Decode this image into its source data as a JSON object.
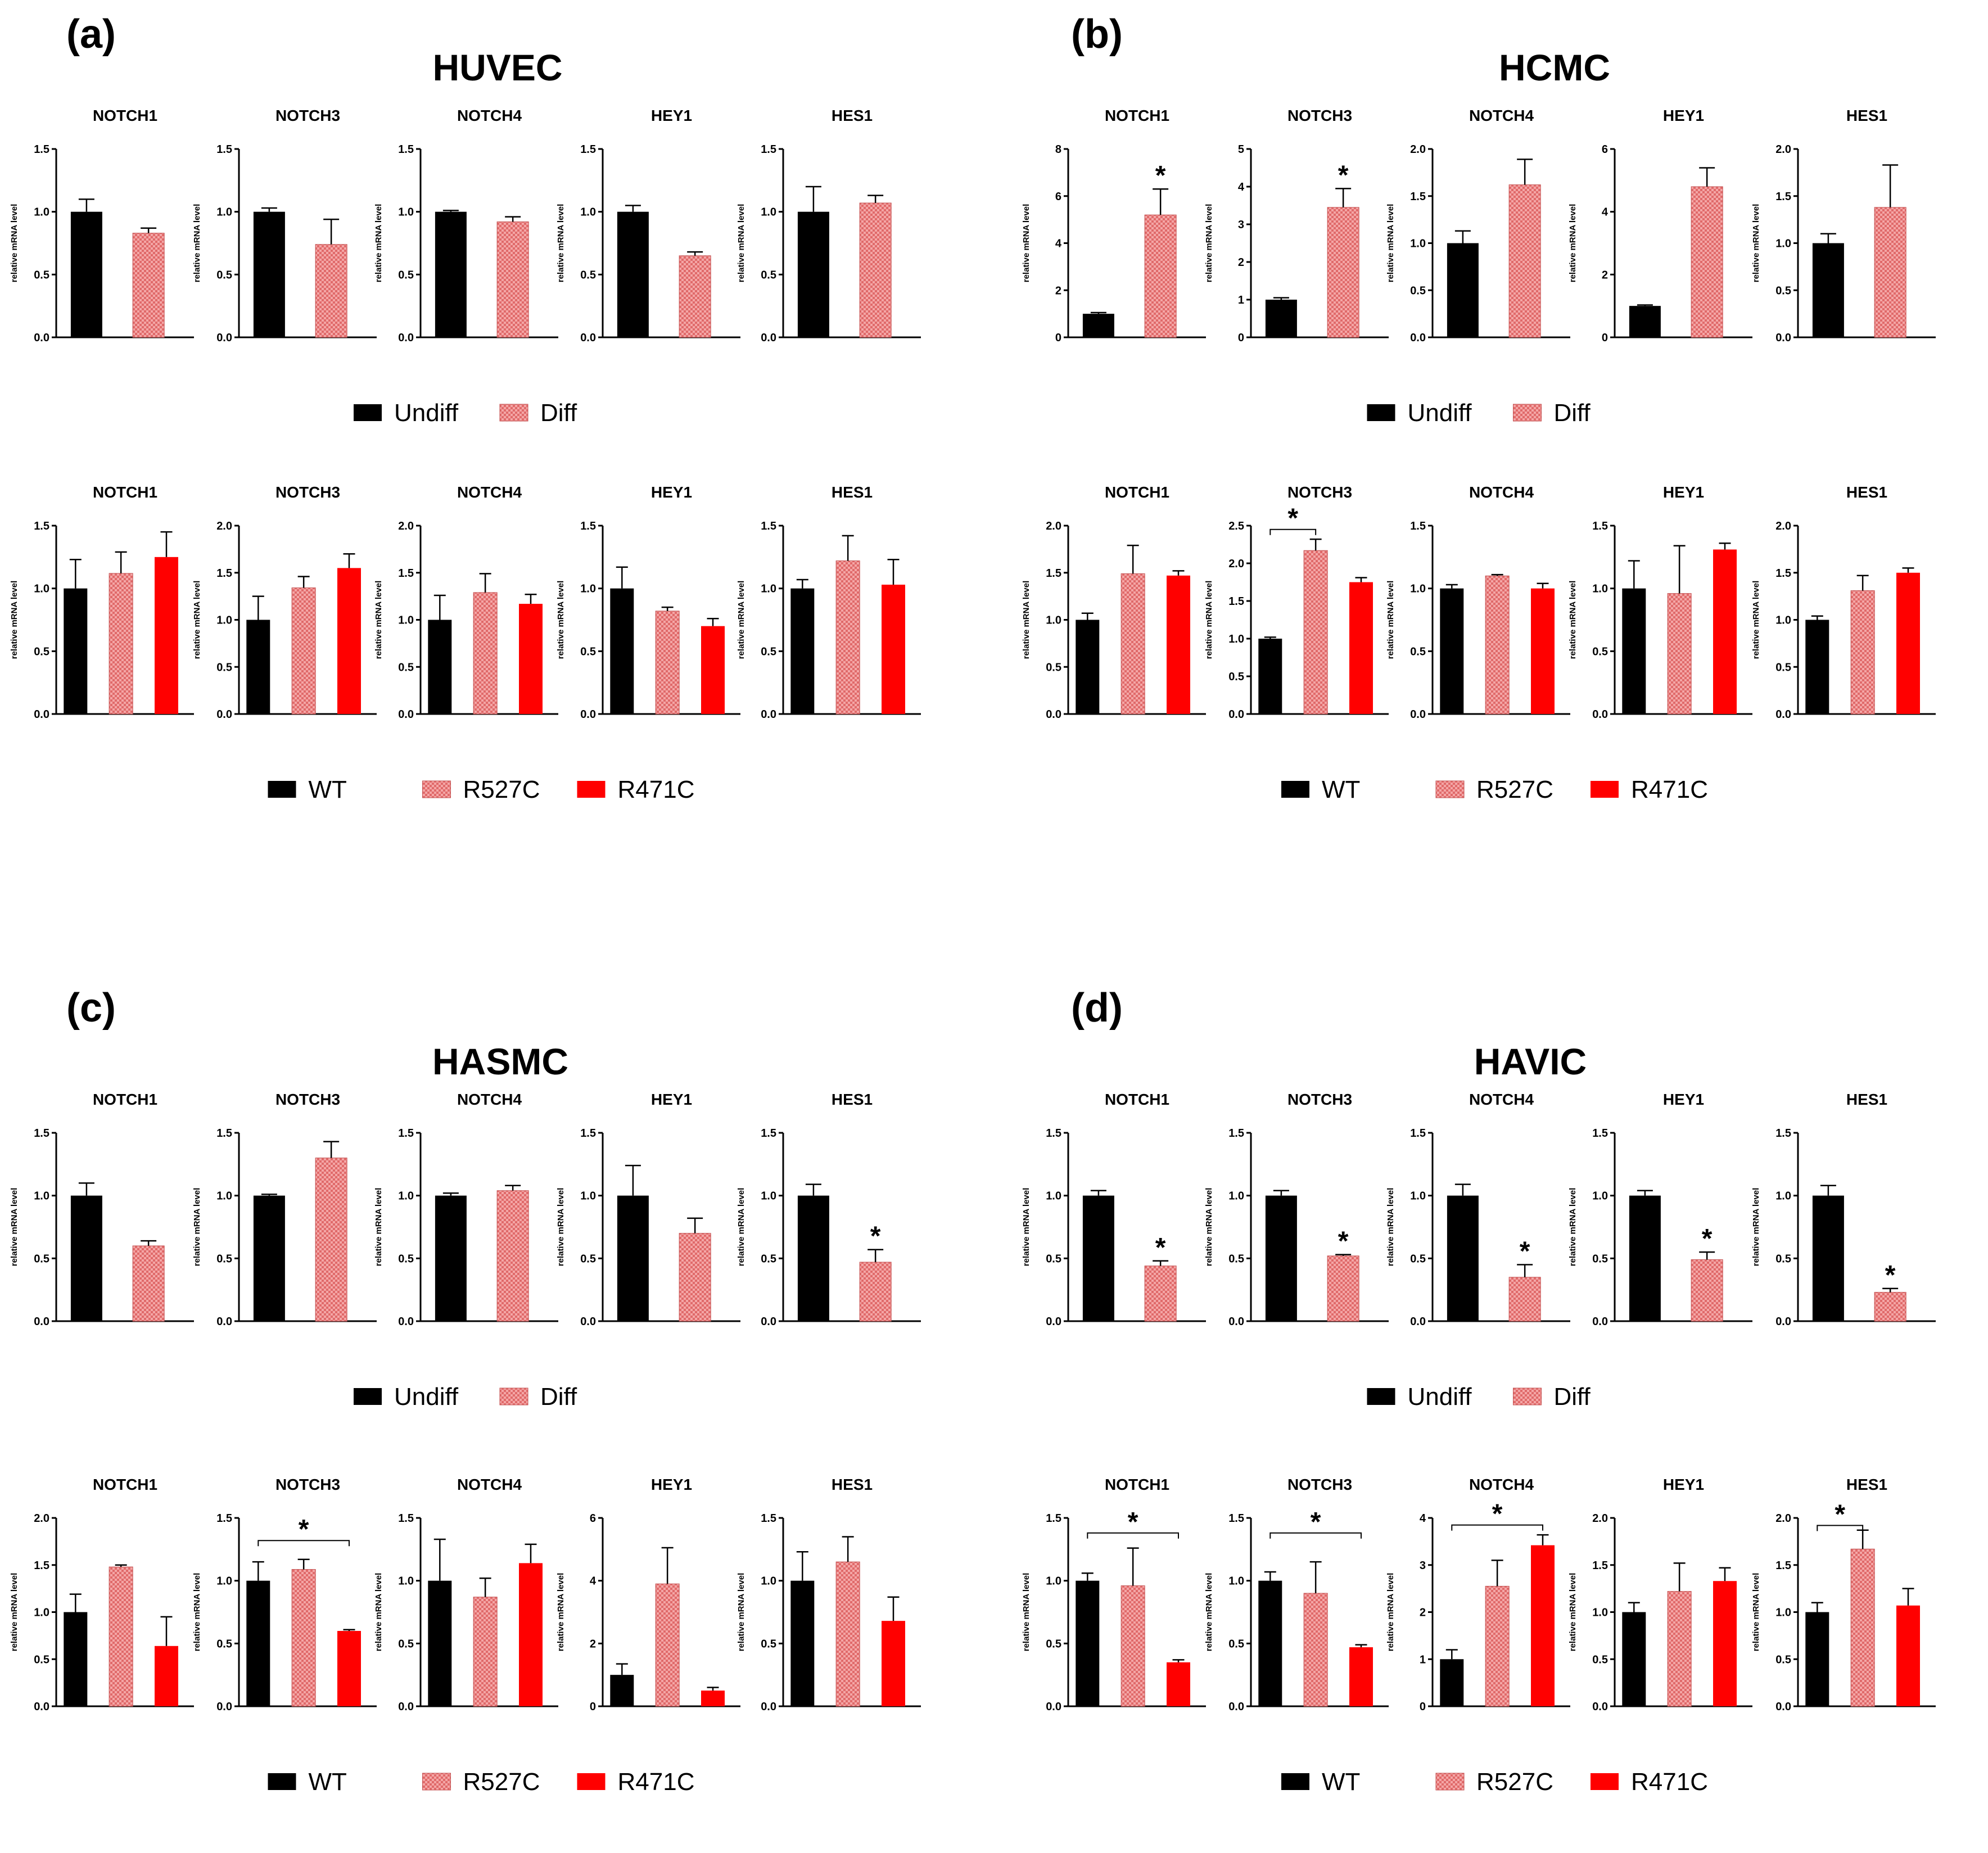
{
  "colors": {
    "black": "#000000",
    "pink": "#f08c8c",
    "red": "#ff0000"
  },
  "legends": {
    "diff": [
      {
        "label": "Undiff",
        "fill": "black"
      },
      {
        "label": "Diff",
        "fill": "pink"
      }
    ],
    "geno": [
      {
        "label": "WT",
        "fill": "black"
      },
      {
        "label": "R527C",
        "fill": "pink"
      },
      {
        "label": "R471C",
        "fill": "red"
      }
    ]
  },
  "panels": [
    {
      "label": "(a)",
      "title": "HUVEC"
    },
    {
      "label": "(b)",
      "title": "HCMC"
    },
    {
      "label": "(c)",
      "title": "HASMC"
    },
    {
      "label": "(d)",
      "title": "HAVIC"
    }
  ],
  "chart_data": [
    {
      "panel": 0,
      "row": "diff",
      "type": "bar",
      "ylabel": "relative mRNA level",
      "charts": [
        {
          "title": "NOTCH1",
          "ymax": 1.5,
          "ticks": [
            "0.0",
            "0.5",
            "1.0",
            "1.5"
          ],
          "values": [
            1.0,
            0.83
          ],
          "errors": [
            0.1,
            0.04
          ]
        },
        {
          "title": "NOTCH3",
          "ymax": 1.5,
          "ticks": [
            "0.0",
            "0.5",
            "1.0",
            "1.5"
          ],
          "values": [
            1.0,
            0.74
          ],
          "errors": [
            0.03,
            0.2
          ]
        },
        {
          "title": "NOTCH4",
          "ymax": 1.5,
          "ticks": [
            "0.0",
            "0.5",
            "1.0",
            "1.5"
          ],
          "values": [
            1.0,
            0.92
          ],
          "errors": [
            0.01,
            0.04
          ]
        },
        {
          "title": "HEY1",
          "ymax": 1.5,
          "ticks": [
            "0.0",
            "0.5",
            "1.0",
            "1.5"
          ],
          "values": [
            1.0,
            0.65
          ],
          "errors": [
            0.05,
            0.03
          ]
        },
        {
          "title": "HES1",
          "ymax": 1.5,
          "ticks": [
            "0.0",
            "0.5",
            "1.0",
            "1.5"
          ],
          "values": [
            1.0,
            1.07
          ],
          "errors": [
            0.2,
            0.06
          ]
        }
      ]
    },
    {
      "panel": 0,
      "row": "geno",
      "type": "bar",
      "ylabel": "relative mRNA level",
      "charts": [
        {
          "title": "NOTCH1",
          "ymax": 1.5,
          "ticks": [
            "0.0",
            "0.5",
            "1.0",
            "1.5"
          ],
          "values": [
            1.0,
            1.12,
            1.25
          ],
          "errors": [
            0.23,
            0.17,
            0.2
          ]
        },
        {
          "title": "NOTCH3",
          "ymax": 2.0,
          "ticks": [
            "0.0",
            "0.5",
            "1.0",
            "1.5",
            "2.0"
          ],
          "values": [
            1.0,
            1.34,
            1.55
          ],
          "errors": [
            0.25,
            0.12,
            0.15
          ]
        },
        {
          "title": "NOTCH4",
          "ymax": 2.0,
          "ticks": [
            "0.0",
            "0.5",
            "1.0",
            "1.5",
            "2.0"
          ],
          "values": [
            1.0,
            1.29,
            1.17
          ],
          "errors": [
            0.26,
            0.2,
            0.1
          ]
        },
        {
          "title": "HEY1",
          "ymax": 1.5,
          "ticks": [
            "0.0",
            "0.5",
            "1.0",
            "1.5"
          ],
          "values": [
            1.0,
            0.82,
            0.7
          ],
          "errors": [
            0.17,
            0.03,
            0.06
          ]
        },
        {
          "title": "HES1",
          "ymax": 1.5,
          "ticks": [
            "0.0",
            "0.5",
            "1.0",
            "1.5"
          ],
          "values": [
            1.0,
            1.22,
            1.03
          ],
          "errors": [
            0.07,
            0.2,
            0.2
          ]
        }
      ]
    },
    {
      "panel": 1,
      "row": "diff",
      "type": "bar",
      "ylabel": "relative mRNA level",
      "charts": [
        {
          "title": "NOTCH1",
          "ymax": 8,
          "ticks": [
            "0",
            "2",
            "4",
            "6",
            "8"
          ],
          "values": [
            1.0,
            5.2
          ],
          "errors": [
            0.05,
            1.1
          ],
          "stars": [
            {
              "label": "*",
              "bar": 1
            }
          ]
        },
        {
          "title": "NOTCH3",
          "ymax": 5,
          "ticks": [
            "0",
            "1",
            "2",
            "3",
            "4",
            "5"
          ],
          "values": [
            1.0,
            3.45
          ],
          "errors": [
            0.05,
            0.5
          ],
          "stars": [
            {
              "label": "*",
              "bar": 1
            }
          ]
        },
        {
          "title": "NOTCH4",
          "ymax": 2.0,
          "ticks": [
            "0.0",
            "0.5",
            "1.0",
            "1.5",
            "2.0"
          ],
          "values": [
            1.0,
            1.62
          ],
          "errors": [
            0.13,
            0.27
          ]
        },
        {
          "title": "HEY1",
          "ymax": 6,
          "ticks": [
            "0",
            "2",
            "4",
            "6"
          ],
          "values": [
            1.0,
            4.8
          ],
          "errors": [
            0.03,
            0.6
          ]
        },
        {
          "title": "HES1",
          "ymax": 2.0,
          "ticks": [
            "0.0",
            "0.5",
            "1.0",
            "1.5",
            "2.0"
          ],
          "values": [
            1.0,
            1.38
          ],
          "errors": [
            0.1,
            0.45
          ]
        }
      ]
    },
    {
      "panel": 1,
      "row": "geno",
      "type": "bar",
      "ylabel": "relative mRNA level",
      "charts": [
        {
          "title": "NOTCH1",
          "ymax": 2.0,
          "ticks": [
            "0.0",
            "0.5",
            "1.0",
            "1.5",
            "2.0"
          ],
          "values": [
            1.0,
            1.49,
            1.47
          ],
          "errors": [
            0.07,
            0.3,
            0.05
          ]
        },
        {
          "title": "NOTCH3",
          "ymax": 2.5,
          "ticks": [
            "0.0",
            "0.5",
            "1.0",
            "1.5",
            "2.0",
            "2.5"
          ],
          "values": [
            1.0,
            2.17,
            1.75
          ],
          "errors": [
            0.02,
            0.15,
            0.06
          ],
          "stars": [
            {
              "label": "*",
              "from": 0,
              "to": 1,
              "y": 2.45
            }
          ]
        },
        {
          "title": "NOTCH4",
          "ymax": 1.5,
          "ticks": [
            "0.0",
            "0.5",
            "1.0",
            "1.5"
          ],
          "values": [
            1.0,
            1.1,
            1.0
          ],
          "errors": [
            0.03,
            0.01,
            0.04
          ]
        },
        {
          "title": "HEY1",
          "ymax": 1.5,
          "ticks": [
            "0.0",
            "0.5",
            "1.0",
            "1.5"
          ],
          "values": [
            1.0,
            0.96,
            1.31
          ],
          "errors": [
            0.22,
            0.38,
            0.05
          ]
        },
        {
          "title": "HES1",
          "ymax": 2.0,
          "ticks": [
            "0.0",
            "0.5",
            "1.0",
            "1.5",
            "2.0"
          ],
          "values": [
            1.0,
            1.31,
            1.5
          ],
          "errors": [
            0.04,
            0.16,
            0.05
          ]
        }
      ]
    },
    {
      "panel": 2,
      "row": "diff",
      "type": "bar",
      "ylabel": "relative mRNA level",
      "charts": [
        {
          "title": "NOTCH1",
          "ymax": 1.5,
          "ticks": [
            "0.0",
            "0.5",
            "1.0",
            "1.5"
          ],
          "values": [
            1.0,
            0.6
          ],
          "errors": [
            0.1,
            0.04
          ]
        },
        {
          "title": "NOTCH3",
          "ymax": 1.5,
          "ticks": [
            "0.0",
            "0.5",
            "1.0",
            "1.5"
          ],
          "values": [
            1.0,
            1.3
          ],
          "errors": [
            0.01,
            0.13
          ]
        },
        {
          "title": "NOTCH4",
          "ymax": 1.5,
          "ticks": [
            "0.0",
            "0.5",
            "1.0",
            "1.5"
          ],
          "values": [
            1.0,
            1.04
          ],
          "errors": [
            0.02,
            0.04
          ]
        },
        {
          "title": "HEY1",
          "ymax": 1.5,
          "ticks": [
            "0.0",
            "0.5",
            "1.0",
            "1.5"
          ],
          "values": [
            1.0,
            0.7
          ],
          "errors": [
            0.24,
            0.12
          ]
        },
        {
          "title": "HES1",
          "ymax": 1.5,
          "ticks": [
            "0.0",
            "0.5",
            "1.0",
            "1.5"
          ],
          "values": [
            1.0,
            0.47
          ],
          "errors": [
            0.09,
            0.1
          ],
          "stars": [
            {
              "label": "*",
              "bar": 1
            }
          ]
        }
      ]
    },
    {
      "panel": 2,
      "row": "geno",
      "type": "bar",
      "ylabel": "relative mRNA level",
      "charts": [
        {
          "title": "NOTCH1",
          "ymax": 2.0,
          "ticks": [
            "0.0",
            "0.5",
            "1.0",
            "1.5",
            "2.0"
          ],
          "values": [
            1.0,
            1.48,
            0.64
          ],
          "errors": [
            0.19,
            0.02,
            0.31
          ]
        },
        {
          "title": "NOTCH3",
          "ymax": 1.5,
          "ticks": [
            "0.0",
            "0.5",
            "1.0",
            "1.5"
          ],
          "values": [
            1.0,
            1.09,
            0.6
          ],
          "errors": [
            0.15,
            0.08,
            0.01
          ],
          "stars": [
            {
              "label": "*",
              "from": 0,
              "to": 2,
              "y": 1.32
            }
          ]
        },
        {
          "title": "NOTCH4",
          "ymax": 1.5,
          "ticks": [
            "0.0",
            "0.5",
            "1.0",
            "1.5"
          ],
          "values": [
            1.0,
            0.87,
            1.14
          ],
          "errors": [
            0.33,
            0.15,
            0.15
          ]
        },
        {
          "title": "HEY1",
          "ymax": 6,
          "ticks": [
            "0",
            "2",
            "4",
            "6"
          ],
          "values": [
            1.0,
            3.9,
            0.5
          ],
          "errors": [
            0.35,
            1.15,
            0.1
          ]
        },
        {
          "title": "HES1",
          "ymax": 1.5,
          "ticks": [
            "0.0",
            "0.5",
            "1.0",
            "1.5"
          ],
          "values": [
            1.0,
            1.15,
            0.68
          ],
          "errors": [
            0.23,
            0.2,
            0.19
          ]
        }
      ]
    },
    {
      "panel": 3,
      "row": "diff",
      "type": "bar",
      "ylabel": "relative mRNA level",
      "charts": [
        {
          "title": "NOTCH1",
          "ymax": 1.5,
          "ticks": [
            "0.0",
            "0.5",
            "1.0",
            "1.5"
          ],
          "values": [
            1.0,
            0.44
          ],
          "errors": [
            0.04,
            0.04
          ],
          "stars": [
            {
              "label": "*",
              "bar": 1
            }
          ]
        },
        {
          "title": "NOTCH3",
          "ymax": 1.5,
          "ticks": [
            "0.0",
            "0.5",
            "1.0",
            "1.5"
          ],
          "values": [
            1.0,
            0.52
          ],
          "errors": [
            0.04,
            0.01
          ],
          "stars": [
            {
              "label": "*",
              "bar": 1
            }
          ]
        },
        {
          "title": "NOTCH4",
          "ymax": 1.5,
          "ticks": [
            "0.0",
            "0.5",
            "1.0",
            "1.5"
          ],
          "values": [
            1.0,
            0.35
          ],
          "errors": [
            0.09,
            0.1
          ],
          "stars": [
            {
              "label": "*",
              "bar": 1
            }
          ]
        },
        {
          "title": "HEY1",
          "ymax": 1.5,
          "ticks": [
            "0.0",
            "0.5",
            "1.0",
            "1.5"
          ],
          "values": [
            1.0,
            0.49
          ],
          "errors": [
            0.04,
            0.06
          ],
          "stars": [
            {
              "label": "*",
              "bar": 1
            }
          ]
        },
        {
          "title": "HES1",
          "ymax": 1.5,
          "ticks": [
            "0.0",
            "0.5",
            "1.0",
            "1.5"
          ],
          "values": [
            1.0,
            0.23
          ],
          "errors": [
            0.08,
            0.03
          ],
          "stars": [
            {
              "label": "*",
              "bar": 1
            }
          ]
        }
      ]
    },
    {
      "panel": 3,
      "row": "geno",
      "type": "bar",
      "ylabel": "relative mRNA level",
      "charts": [
        {
          "title": "NOTCH1",
          "ymax": 1.5,
          "ticks": [
            "0.0",
            "0.5",
            "1.0",
            "1.5"
          ],
          "values": [
            1.0,
            0.96,
            0.35
          ],
          "errors": [
            0.06,
            0.3,
            0.02
          ],
          "stars": [
            {
              "label": "*",
              "from": 0,
              "to": 2,
              "y": 1.38
            }
          ]
        },
        {
          "title": "NOTCH3",
          "ymax": 1.5,
          "ticks": [
            "0.0",
            "0.5",
            "1.0",
            "1.5"
          ],
          "values": [
            1.0,
            0.9,
            0.47
          ],
          "errors": [
            0.07,
            0.25,
            0.02
          ],
          "stars": [
            {
              "label": "*",
              "from": 0,
              "to": 2,
              "y": 1.38
            }
          ]
        },
        {
          "title": "NOTCH4",
          "ymax": 4,
          "ticks": [
            "0",
            "1",
            "2",
            "3",
            "4"
          ],
          "values": [
            1.0,
            2.55,
            3.42
          ],
          "errors": [
            0.2,
            0.55,
            0.22
          ],
          "stars": [
            {
              "label": "*",
              "from": 0,
              "to": 2,
              "y": 3.85
            }
          ]
        },
        {
          "title": "HEY1",
          "ymax": 2.0,
          "ticks": [
            "0.0",
            "0.5",
            "1.0",
            "1.5",
            "2.0"
          ],
          "values": [
            1.0,
            1.22,
            1.33
          ],
          "errors": [
            0.1,
            0.3,
            0.14
          ]
        },
        {
          "title": "HES1",
          "ymax": 2.0,
          "ticks": [
            "0.0",
            "0.5",
            "1.0",
            "1.5",
            "2.0"
          ],
          "values": [
            1.0,
            1.67,
            1.07
          ],
          "errors": [
            0.1,
            0.2,
            0.18
          ],
          "stars": [
            {
              "label": "*",
              "from": 0,
              "to": 1,
              "y": 1.92
            }
          ]
        }
      ]
    }
  ]
}
